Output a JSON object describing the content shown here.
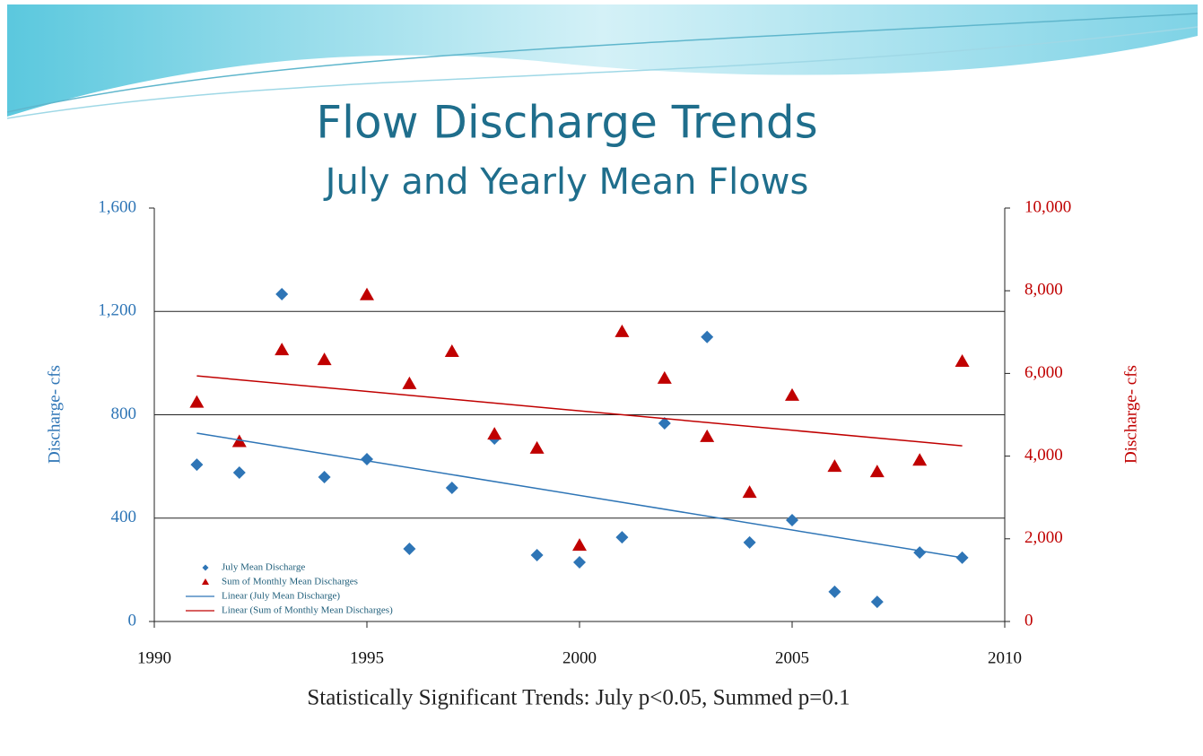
{
  "chart_data": {
    "type": "scatter",
    "title": "Flow Discharge Trends",
    "subtitle": "July and Yearly Mean Flows",
    "ylabel": "Discharge- cfs",
    "y2label": "Discharge- cfs",
    "footnote": "Statistically Significant Trends: July p<0.05, Summed p=0.1",
    "xlim": [
      1990,
      2010
    ],
    "xticks": [
      1990,
      1995,
      2000,
      2005,
      2010
    ],
    "ylim": [
      0,
      1600
    ],
    "yticks": [
      0,
      400,
      800,
      {
        "value": 1200,
        "label": "1,200"
      },
      {
        "value": 1600,
        "label": "1,600"
      }
    ],
    "y2lim": [
      0,
      10000
    ],
    "y2ticks": [
      0,
      {
        "value": 2000,
        "label": "2,000"
      },
      {
        "value": 4000,
        "label": "4,000"
      },
      {
        "value": 6000,
        "label": "6,000"
      },
      {
        "value": 8000,
        "label": "8,000"
      },
      {
        "value": 10000,
        "label": "10,000"
      }
    ],
    "grid": true,
    "legend": "lower left",
    "series": [
      {
        "name": "July Mean Discharge",
        "color": "#2e75b6",
        "marker": "diamond",
        "x": [
          1991,
          1992,
          1993,
          1994,
          1995,
          1996,
          1997,
          1998,
          1999,
          2000,
          2001,
          2002,
          2003,
          2004,
          2005,
          2006,
          2007,
          2008,
          2009
        ],
        "values": [
          607,
          576,
          1267,
          559,
          628,
          281,
          517,
          708,
          257,
          229,
          326,
          767,
          1101,
          306,
          392,
          115,
          76,
          267,
          247
        ]
      },
      {
        "name": "Sum of Monthly Mean Discharges",
        "color": "#c00000",
        "marker": "triangle",
        "axis": "y2",
        "x": [
          1991,
          1992,
          1993,
          1994,
          1995,
          1996,
          1997,
          1998,
          1999,
          2000,
          2001,
          2002,
          2003,
          2004,
          2005,
          2006,
          2007,
          2008,
          2009
        ],
        "values": [
          5300,
          4350,
          6570,
          6330,
          7900,
          5750,
          6530,
          4530,
          4190,
          1840,
          7010,
          5880,
          4470,
          3120,
          5470,
          3750,
          3620,
          3900,
          6290
        ]
      },
      {
        "name": "Linear (July Mean Discharge)",
        "color": "#2e75b6",
        "marker": "line",
        "x": [
          1991,
          2009
        ],
        "values": [
          729,
          247
        ]
      },
      {
        "name": "Linear (Sum of Monthly Mean Discharges)",
        "color": "#c00000",
        "marker": "line",
        "axis": "y2",
        "x": [
          1991,
          2009
        ],
        "values": [
          5940,
          4250
        ]
      }
    ]
  }
}
